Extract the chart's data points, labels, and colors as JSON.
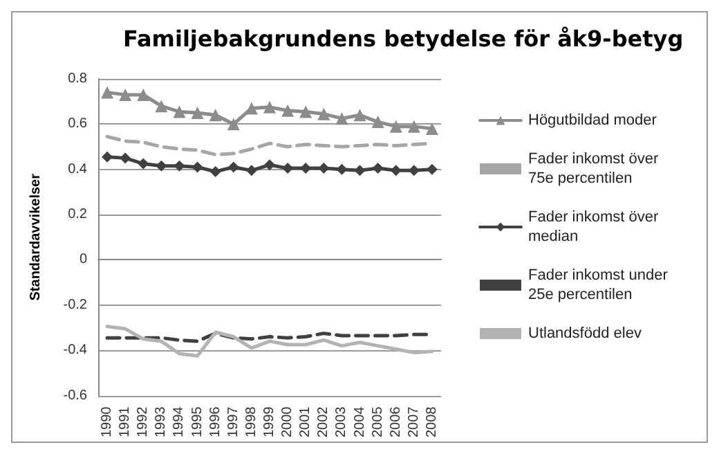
{
  "chart_data": {
    "type": "line",
    "title": "Familjebakgrundens betydelse för åk9-betyg",
    "ylabel": "Standardavvikelser",
    "categories": [
      "1990",
      "1991",
      "1992",
      "1993",
      "1994",
      "1995",
      "1996",
      "1997",
      "1998",
      "1999",
      "2000",
      "2001",
      "2002",
      "2003",
      "2004",
      "2005",
      "2006",
      "2007",
      "2008"
    ],
    "series": [
      {
        "name": "Högutbildad moder",
        "color": "#8c8c8c",
        "marker": "triangle",
        "line_style": "solid",
        "values": [
          0.74,
          0.73,
          0.73,
          0.68,
          0.655,
          0.65,
          0.64,
          0.6,
          0.67,
          0.675,
          0.66,
          0.655,
          0.645,
          0.625,
          0.64,
          0.61,
          0.59,
          0.59,
          0.58
        ]
      },
      {
        "name": "Fader inkomst över 75e percentilen",
        "color": "#a6a6a6",
        "marker": "none",
        "line_style": "dashed",
        "values": [
          0.545,
          0.525,
          0.52,
          0.5,
          0.49,
          0.485,
          0.465,
          0.47,
          0.49,
          0.515,
          0.5,
          0.51,
          0.505,
          0.5,
          0.505,
          0.51,
          0.505,
          0.51,
          0.515
        ]
      },
      {
        "name": "Fader inkomst över median",
        "color": "#404040",
        "marker": "diamond",
        "line_style": "solid",
        "values": [
          0.455,
          0.45,
          0.425,
          0.415,
          0.415,
          0.41,
          0.39,
          0.41,
          0.395,
          0.42,
          0.405,
          0.405,
          0.405,
          0.4,
          0.395,
          0.405,
          0.395,
          0.395,
          0.4
        ]
      },
      {
        "name": "Fader inkomst under 25e percentilen",
        "color": "#404040",
        "marker": "none",
        "line_style": "dashed",
        "values": [
          -0.345,
          -0.345,
          -0.345,
          -0.345,
          -0.355,
          -0.36,
          -0.325,
          -0.345,
          -0.35,
          -0.34,
          -0.345,
          -0.34,
          -0.325,
          -0.335,
          -0.335,
          -0.335,
          -0.335,
          -0.33,
          -0.33
        ]
      },
      {
        "name": "Utlandsfödd elev",
        "color": "#b3b3b3",
        "marker": "none",
        "line_style": "solid",
        "values": [
          -0.295,
          -0.305,
          -0.35,
          -0.36,
          -0.415,
          -0.425,
          -0.32,
          -0.34,
          -0.39,
          -0.36,
          -0.375,
          -0.375,
          -0.355,
          -0.38,
          -0.365,
          -0.38,
          -0.395,
          -0.41,
          -0.405
        ]
      }
    ],
    "ylim": [
      -0.6,
      0.8
    ],
    "yticks": [
      -0.6,
      -0.4,
      -0.2,
      0,
      0.2,
      0.4,
      0.6,
      0.8
    ],
    "grid": "y",
    "legend": "right"
  }
}
